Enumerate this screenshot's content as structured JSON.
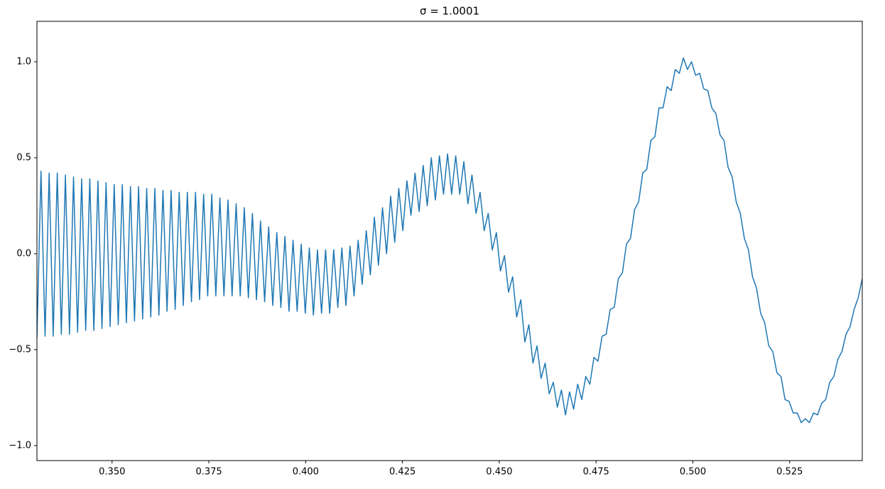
{
  "chart_data": {
    "type": "line",
    "title": "σ = 1.0001",
    "x": [
      0.3306,
      0.33165,
      0.3327,
      0.33375,
      0.3348,
      0.33585,
      0.3369,
      0.33795,
      0.339,
      0.34005,
      0.3411,
      0.34215,
      0.3432,
      0.34425,
      0.3453,
      0.34635,
      0.3474,
      0.34845,
      0.3495,
      0.35055,
      0.3516,
      0.35265,
      0.3537,
      0.35475,
      0.3558,
      0.35685,
      0.3579,
      0.35895,
      0.36,
      0.36105,
      0.3621,
      0.36315,
      0.3642,
      0.36525,
      0.3663,
      0.36735,
      0.3684,
      0.36945,
      0.3705,
      0.37155,
      0.3726,
      0.37365,
      0.3747,
      0.37575,
      0.3768,
      0.37785,
      0.3789,
      0.37995,
      0.381,
      0.38205,
      0.3831,
      0.38415,
      0.3852,
      0.38625,
      0.3873,
      0.38835,
      0.3894,
      0.39045,
      0.3915,
      0.39255,
      0.3936,
      0.39465,
      0.3957,
      0.39675,
      0.3978,
      0.39885,
      0.3999,
      0.40095,
      0.402,
      0.40305,
      0.4041,
      0.40515,
      0.4062,
      0.40725,
      0.4083,
      0.40935,
      0.4104,
      0.41145,
      0.4125,
      0.41355,
      0.4146,
      0.41565,
      0.4167,
      0.41775,
      0.4188,
      0.41985,
      0.4209,
      0.42195,
      0.423,
      0.42405,
      0.4251,
      0.42615,
      0.4272,
      0.42825,
      0.4293,
      0.43035,
      0.4314,
      0.43245,
      0.4335,
      0.43455,
      0.4356,
      0.43665,
      0.4377,
      0.43875,
      0.4398,
      0.44085,
      0.4419,
      0.44295,
      0.444,
      0.44505,
      0.4461,
      0.44715,
      0.4482,
      0.44925,
      0.4503,
      0.45135,
      0.4524,
      0.45345,
      0.4545,
      0.45555,
      0.4566,
      0.45765,
      0.4587,
      0.45975,
      0.4608,
      0.46185,
      0.4629,
      0.46395,
      0.465,
      0.46605,
      0.4671,
      0.46815,
      0.4692,
      0.47025,
      0.4713,
      0.47235,
      0.4734,
      0.47445,
      0.4755,
      0.47655,
      0.4776,
      0.47865,
      0.4797,
      0.48075,
      0.4818,
      0.48285,
      0.4839,
      0.48495,
      0.486,
      0.48705,
      0.4881,
      0.48915,
      0.4902,
      0.49125,
      0.4923,
      0.49335,
      0.4944,
      0.49545,
      0.4965,
      0.49755,
      0.4986,
      0.49965,
      0.5007,
      0.50175,
      0.5028,
      0.50385,
      0.5049,
      0.50595,
      0.507,
      0.50805,
      0.5091,
      0.51015,
      0.5112,
      0.51225,
      0.5133,
      0.51435,
      0.5154,
      0.51645,
      0.5175,
      0.51855,
      0.5196,
      0.52065,
      0.5217,
      0.52275,
      0.5238,
      0.52485,
      0.5259,
      0.52695,
      0.528,
      0.52905,
      0.5301,
      0.53115,
      0.5322,
      0.53325,
      0.5343,
      0.53535,
      0.5364,
      0.53745,
      0.5385,
      0.53955,
      0.5406,
      0.54165,
      0.5427,
      0.54375
    ],
    "values": [
      -0.44,
      0.43,
      -0.43,
      0.42,
      -0.43,
      0.42,
      -0.42,
      0.41,
      -0.42,
      0.4,
      -0.41,
      0.39,
      -0.4,
      0.39,
      -0.4,
      0.38,
      -0.39,
      0.37,
      -0.38,
      0.36,
      -0.37,
      0.36,
      -0.36,
      0.35,
      -0.35,
      0.35,
      -0.34,
      0.34,
      -0.33,
      0.34,
      -0.32,
      0.33,
      -0.3,
      0.33,
      -0.29,
      0.32,
      -0.27,
      0.32,
      -0.25,
      0.32,
      -0.24,
      0.31,
      -0.22,
      0.31,
      -0.22,
      0.29,
      -0.22,
      0.28,
      -0.22,
      0.26,
      -0.22,
      0.24,
      -0.23,
      0.21,
      -0.24,
      0.17,
      -0.25,
      0.14,
      -0.27,
      0.11,
      -0.28,
      0.09,
      -0.3,
      0.07,
      -0.3,
      0.05,
      -0.31,
      0.03,
      -0.32,
      0.02,
      -0.31,
      0.02,
      -0.31,
      0.02,
      -0.28,
      0.03,
      -0.27,
      0.04,
      -0.22,
      0.07,
      -0.16,
      0.12,
      -0.11,
      0.19,
      -0.06,
      0.24,
      0.0,
      0.3,
      0.06,
      0.34,
      0.12,
      0.38,
      0.2,
      0.42,
      0.22,
      0.46,
      0.25,
      0.5,
      0.28,
      0.51,
      0.31,
      0.52,
      0.31,
      0.51,
      0.31,
      0.48,
      0.26,
      0.41,
      0.21,
      0.32,
      0.12,
      0.21,
      0.02,
      0.11,
      -0.09,
      -0.01,
      -0.2,
      -0.12,
      -0.33,
      -0.24,
      -0.46,
      -0.37,
      -0.57,
      -0.48,
      -0.65,
      -0.57,
      -0.73,
      -0.67,
      -0.8,
      -0.71,
      -0.84,
      -0.72,
      -0.81,
      -0.68,
      -0.76,
      -0.64,
      -0.68,
      -0.54,
      -0.56,
      -0.43,
      -0.42,
      -0.29,
      -0.28,
      -0.13,
      -0.1,
      0.05,
      0.08,
      0.23,
      0.27,
      0.42,
      0.44,
      0.59,
      0.61,
      0.76,
      0.76,
      0.87,
      0.85,
      0.96,
      0.94,
      1.02,
      0.96,
      1.0,
      0.93,
      0.94,
      0.86,
      0.85,
      0.76,
      0.73,
      0.62,
      0.59,
      0.45,
      0.4,
      0.27,
      0.21,
      0.08,
      0.02,
      -0.12,
      -0.18,
      -0.31,
      -0.36,
      -0.48,
      -0.51,
      -0.62,
      -0.64,
      -0.76,
      -0.77,
      -0.83,
      -0.83,
      -0.88,
      -0.86,
      -0.88,
      -0.83,
      -0.84,
      -0.78,
      -0.76,
      -0.67,
      -0.64,
      -0.55,
      -0.51,
      -0.42,
      -0.38,
      -0.29,
      -0.23,
      -0.13
    ],
    "color": "#1f77b4",
    "xlim": [
      0.3306,
      0.54375
    ],
    "ylim": [
      -1.078,
      1.211
    ],
    "xticks": [
      {
        "value": 0.35,
        "label": "0.350"
      },
      {
        "value": 0.375,
        "label": "0.375"
      },
      {
        "value": 0.4,
        "label": "0.400"
      },
      {
        "value": 0.425,
        "label": "0.425"
      },
      {
        "value": 0.45,
        "label": "0.450"
      },
      {
        "value": 0.475,
        "label": "0.475"
      },
      {
        "value": 0.5,
        "label": "0.500"
      },
      {
        "value": 0.525,
        "label": "0.525"
      }
    ],
    "yticks": [
      {
        "value": -1,
        "label": "−1.0"
      },
      {
        "value": -0.5,
        "label": "−0.5"
      },
      {
        "value": 0,
        "label": "0.0"
      },
      {
        "value": 0.5,
        "label": "0.5"
      },
      {
        "value": 1,
        "label": "1.0"
      }
    ],
    "grid": false
  }
}
